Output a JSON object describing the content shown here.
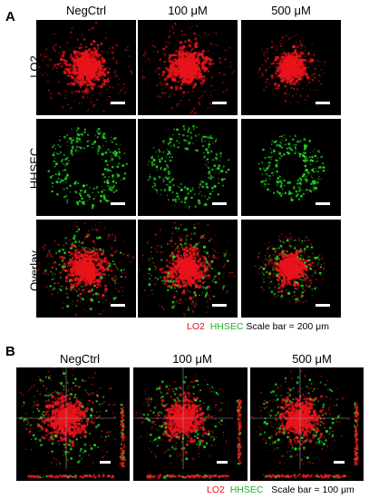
{
  "panel_a": {
    "letter": "A",
    "columns": [
      "NegCtrl",
      "100 μM",
      "500 μM"
    ],
    "rows": [
      "LO2",
      "HHSEC",
      "Overlay"
    ],
    "legend": {
      "red": "LO2",
      "green": "HHSEC",
      "scale": "Scale bar = 200 μm"
    }
  },
  "panel_b": {
    "letter": "B",
    "columns": [
      "NegCtrl",
      "100 μM",
      "500 μM"
    ],
    "legend": {
      "red": "LO2",
      "green": "HHSEC",
      "scale": "Scale bar = 100 μm"
    }
  },
  "colors": {
    "lo2": "#e8141b",
    "hhsec": "#22d622",
    "background": "#000000"
  }
}
